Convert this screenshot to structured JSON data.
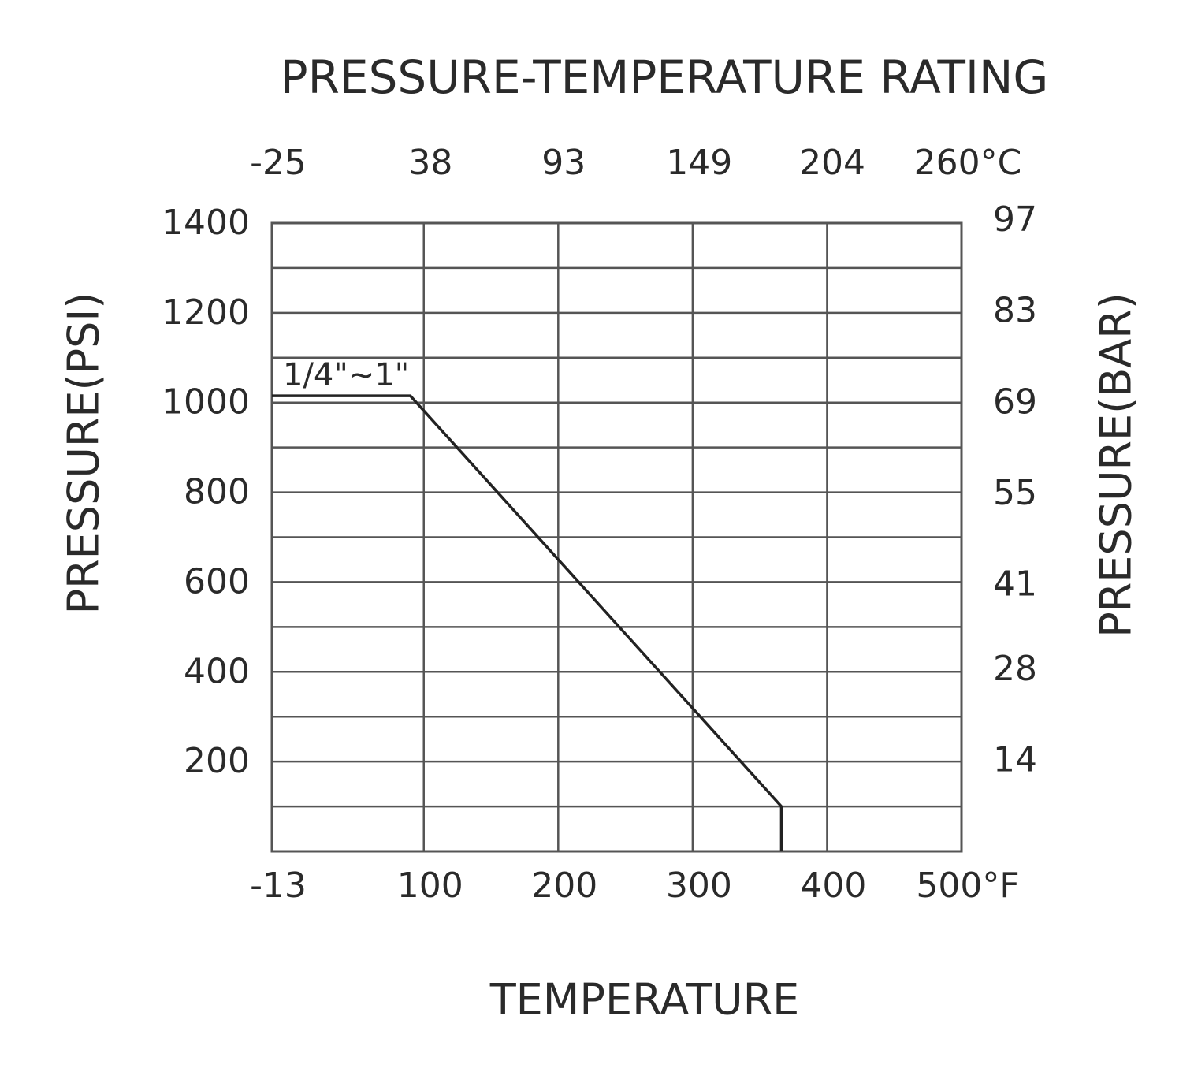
{
  "chart_data": {
    "type": "line",
    "title": "PRESSURE-TEMPERATURE RATING",
    "x_label": "TEMPERATURE",
    "y_label": "PRESSURE(PSI)",
    "y2_label": "PRESSURE(BAR)",
    "xlim": [
      -13,
      500
    ],
    "xticks": [
      -13,
      100,
      200,
      300,
      400,
      {
        "value": 500,
        "label": "500°F"
      }
    ],
    "x2lim": [
      -25,
      260
    ],
    "x2ticks": [
      -25,
      38,
      93,
      149,
      204,
      {
        "value": 260,
        "label": "260°C"
      }
    ],
    "ylim": [
      0,
      1400
    ],
    "yticks": [
      200,
      400,
      600,
      800,
      1000,
      1200,
      1400
    ],
    "yminorticks": [
      100,
      300,
      500,
      700,
      900,
      1100,
      1300
    ],
    "y2lim": [
      0,
      96.53
    ],
    "y2ticks": [
      14,
      28,
      41,
      55,
      69,
      83,
      97
    ],
    "grid": true,
    "series": [
      {
        "name": "1/4\"~1\"",
        "color": "#222222",
        "x": [
          -13,
          90,
          366,
          366
        ],
        "values": [
          1015,
          1015,
          100,
          0
        ]
      }
    ]
  }
}
